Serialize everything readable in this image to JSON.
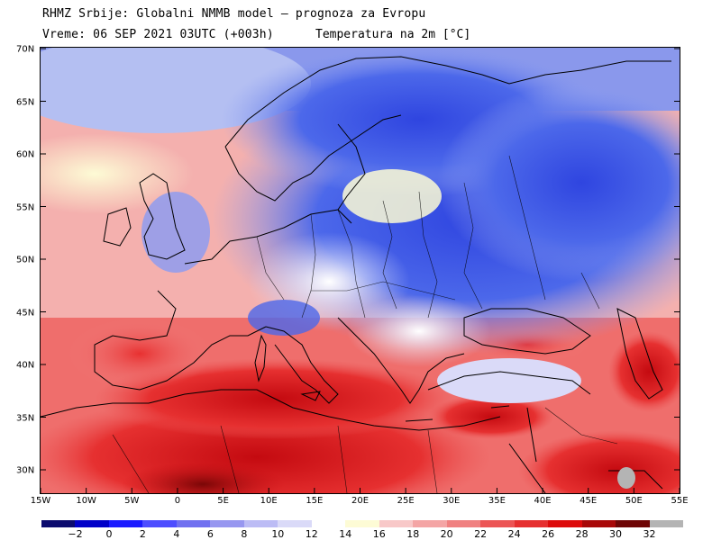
{
  "header": {
    "line1": "RHMZ Srbije: Globalni NMMB model — prognoza za Evropu",
    "line2": "Vreme: 06 SEP 2021 03UTC (+003h)",
    "variable": "Temperatura na 2m [°C]"
  },
  "map": {
    "lat_labels": [
      "70N",
      "65N",
      "60N",
      "55N",
      "50N",
      "45N",
      "40N",
      "35N",
      "30N"
    ],
    "lon_labels": [
      "15W",
      "10W",
      "5W",
      "0",
      "5E",
      "10E",
      "15E",
      "20E",
      "25E",
      "30E",
      "35E",
      "40E",
      "45E",
      "50E",
      "55E"
    ],
    "ocean_color": "#f4c8c4",
    "cold_color": "#3d56e0",
    "warm_color": "#e8282a"
  },
  "colorbar": {
    "colors": [
      "#0b0b6e",
      "#0000c8",
      "#1a1aff",
      "#4d4dff",
      "#7070f0",
      "#9797f0",
      "#bcbcf5",
      "#dadaf8",
      "#ffffff",
      "#fdfbd5",
      "#f8c8c8",
      "#f4a5a5",
      "#f08080",
      "#ec5555",
      "#e63030",
      "#dd0b0b",
      "#a80808",
      "#6e0505",
      "#b4b4b4"
    ],
    "labels": [
      "−2",
      "0",
      "2",
      "4",
      "6",
      "8",
      "10",
      "12",
      "14",
      "16",
      "18",
      "20",
      "22",
      "24",
      "26",
      "28",
      "30",
      "32"
    ]
  }
}
